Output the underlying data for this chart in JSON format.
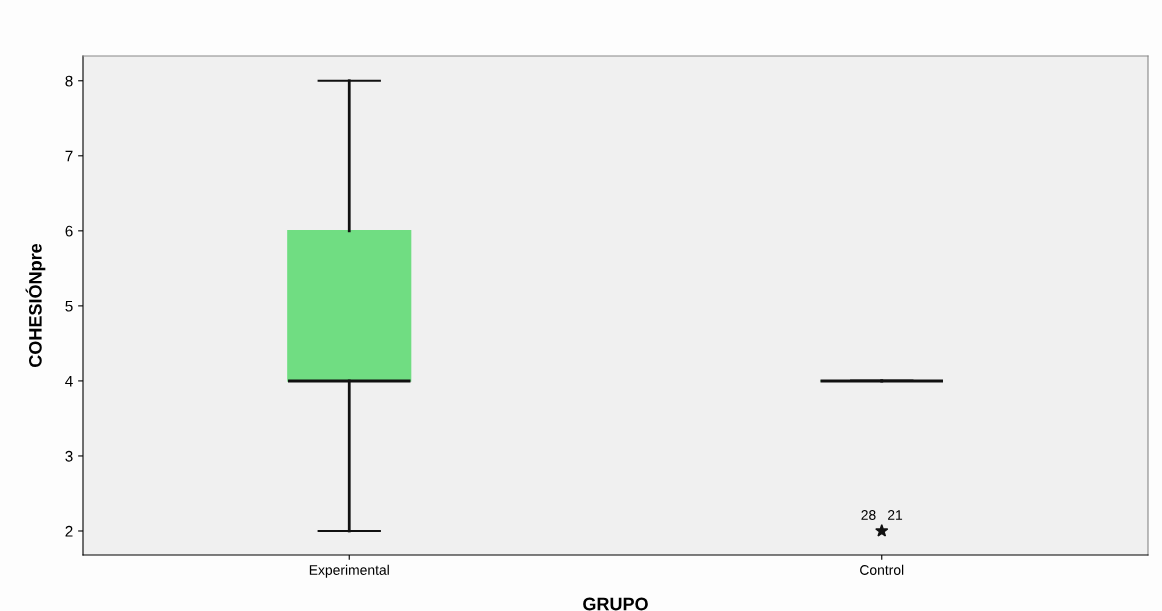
{
  "chart_data": {
    "type": "box",
    "xlabel": "GRUPO",
    "ylabel": "COHESIÓNpre",
    "categories": [
      "Experimental",
      "Control"
    ],
    "series": [
      {
        "color": "#70dd82",
        "boxes": [
          {
            "low": 2,
            "q1": 4,
            "median": 4,
            "q3": 6,
            "high": 8
          },
          {
            "low": 4,
            "q1": 4,
            "median": 4,
            "q3": 4,
            "high": 4,
            "outliers": [
              2
            ]
          }
        ]
      }
    ],
    "ylim": [
      1.68,
      8.33
    ],
    "yticks": [
      2,
      3,
      4,
      5,
      6,
      7,
      8
    ],
    "marker": "star",
    "grid": false,
    "legend": false,
    "annotations": [
      "28",
      "21"
    ]
  }
}
